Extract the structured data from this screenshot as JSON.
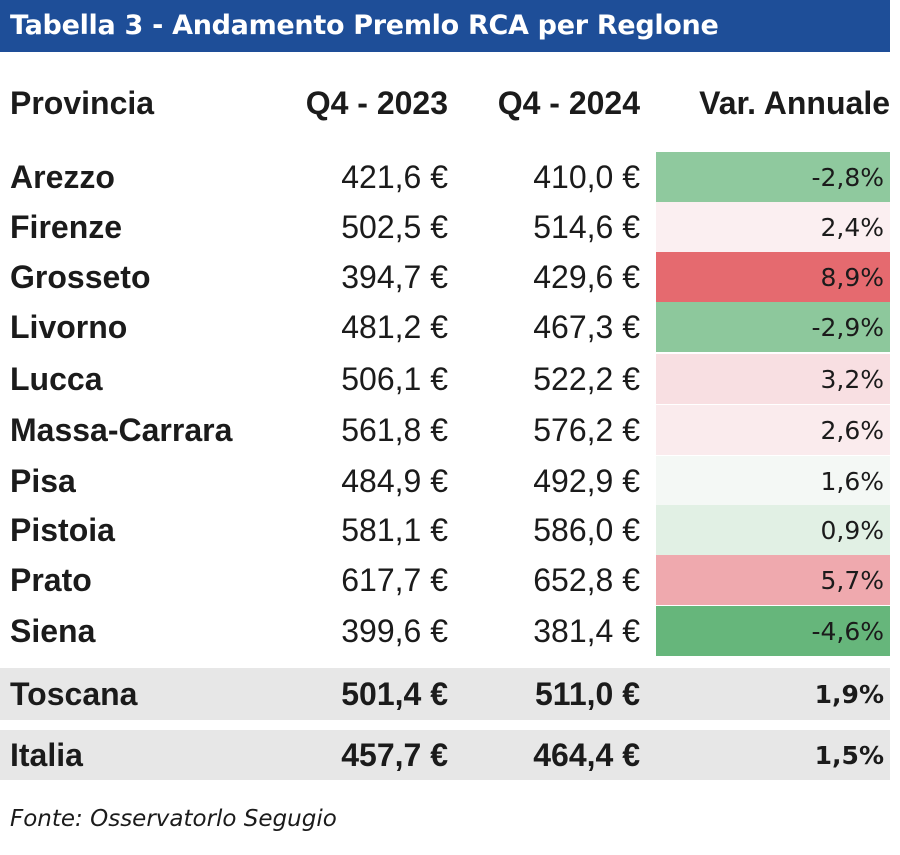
{
  "title": "Tabella 3 - Andamento Premlo RCA per Reglone",
  "header": {
    "provincia": "Provincia",
    "q4_2023": "Q4 - 2023",
    "q4_2024": "Q4 - 2024",
    "var": "Var. Annuale"
  },
  "rows": [
    {
      "provincia": "Arezzo",
      "q4_2023": "421,6 €",
      "q4_2024": "410,0 €",
      "var": "-2,8%",
      "var_color": "#8fc99e"
    },
    {
      "provincia": "Firenze",
      "q4_2023": "502,5 €",
      "q4_2024": "514,6 €",
      "var": "2,4%",
      "var_color": "#fbeff1"
    },
    {
      "provincia": "Grosseto",
      "q4_2023": "394,7 €",
      "q4_2024": "429,6 €",
      "var": "8,9%",
      "var_color": "#e56a6f"
    },
    {
      "provincia": "Livorno",
      "q4_2023": "481,2 €",
      "q4_2024": "467,3 €",
      "var": "-2,9%",
      "var_color": "#8dc89c"
    },
    {
      "provincia": "Lucca",
      "q4_2023": "506,1 €",
      "q4_2024": "522,2 €",
      "var": "3,2%",
      "var_color": "#f8dfe2"
    },
    {
      "provincia": "Massa-Carrara",
      "q4_2023": "561,8 €",
      "q4_2024": "576,2 €",
      "var": "2,6%",
      "var_color": "#faebed"
    },
    {
      "provincia": "Pisa",
      "q4_2023": "484,9 €",
      "q4_2024": "492,9 €",
      "var": "1,6%",
      "var_color": "#f4f8f5"
    },
    {
      "provincia": "Pistoia",
      "q4_2023": "581,1 €",
      "q4_2024": "586,0 €",
      "var": "0,9%",
      "var_color": "#e1f0e4"
    },
    {
      "provincia": "Prato",
      "q4_2023": "617,7 €",
      "q4_2024": "652,8 €",
      "var": "5,7%",
      "var_color": "#efa9ae"
    },
    {
      "provincia": "Siena",
      "q4_2023": "399,6 €",
      "q4_2024": "381,4 €",
      "var": "-4,6%",
      "var_color": "#66b67b"
    }
  ],
  "totals": [
    {
      "provincia": "Toscana",
      "q4_2023": "501,4 €",
      "q4_2024": "511,0 €",
      "var": "1,9%"
    },
    {
      "provincia": "Italia",
      "q4_2023": "457,7 €",
      "q4_2024": "464,4 €",
      "var": "1,5%"
    }
  ],
  "source": "Fonte: Osservatorlo Segugio"
}
